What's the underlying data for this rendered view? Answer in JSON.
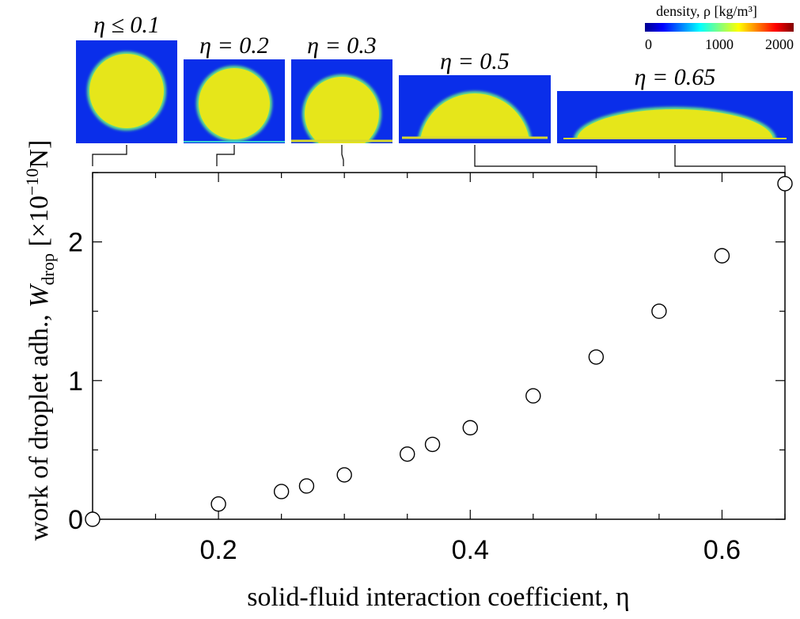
{
  "chart_data": {
    "type": "scatter",
    "title": "",
    "xlabel": "solid-fluid interaction coefficient, η",
    "ylabel": {
      "prefix": "work of droplet adh., ",
      "symbol": "W",
      "subscript": "drop",
      "unit_prefix": " [×10",
      "unit_exponent": "−10",
      "unit_suffix": "N]"
    },
    "xlim": [
      0.1,
      0.65
    ],
    "ylim": [
      0,
      2.5
    ],
    "xticks": [
      0.2,
      0.4,
      0.6
    ],
    "xtick_labels": [
      "0.2",
      "0.4",
      "0.6"
    ],
    "yticks": [
      0,
      1,
      2
    ],
    "ytick_labels": [
      "0",
      "1",
      "2"
    ],
    "marker": "open-circle",
    "series": [
      {
        "x": [
          0.1,
          0.2,
          0.25,
          0.27,
          0.3,
          0.35,
          0.37,
          0.4,
          0.45,
          0.5,
          0.55,
          0.6,
          0.65
        ],
        "y": [
          0.0,
          0.11,
          0.2,
          0.24,
          0.32,
          0.47,
          0.54,
          0.66,
          0.89,
          1.17,
          1.5,
          1.9,
          2.42
        ]
      }
    ],
    "insets": [
      {
        "label": "η ≤ 0.1",
        "eta": 0.1,
        "shape": "sphere"
      },
      {
        "label": "η = 0.2",
        "eta": 0.2,
        "shape": "near-sphere"
      },
      {
        "label": "η = 0.3",
        "eta": 0.3,
        "shape": "truncated"
      },
      {
        "label": "η = 0.5",
        "eta": 0.5,
        "shape": "half-dome"
      },
      {
        "label": "η = 0.65",
        "eta": 0.65,
        "shape": "flat-dome"
      }
    ],
    "colorbar": {
      "label": "density, ρ [kg/m³]",
      "ticks": [
        "0",
        "1000",
        "2000"
      ],
      "range": [
        0,
        2000
      ]
    }
  }
}
